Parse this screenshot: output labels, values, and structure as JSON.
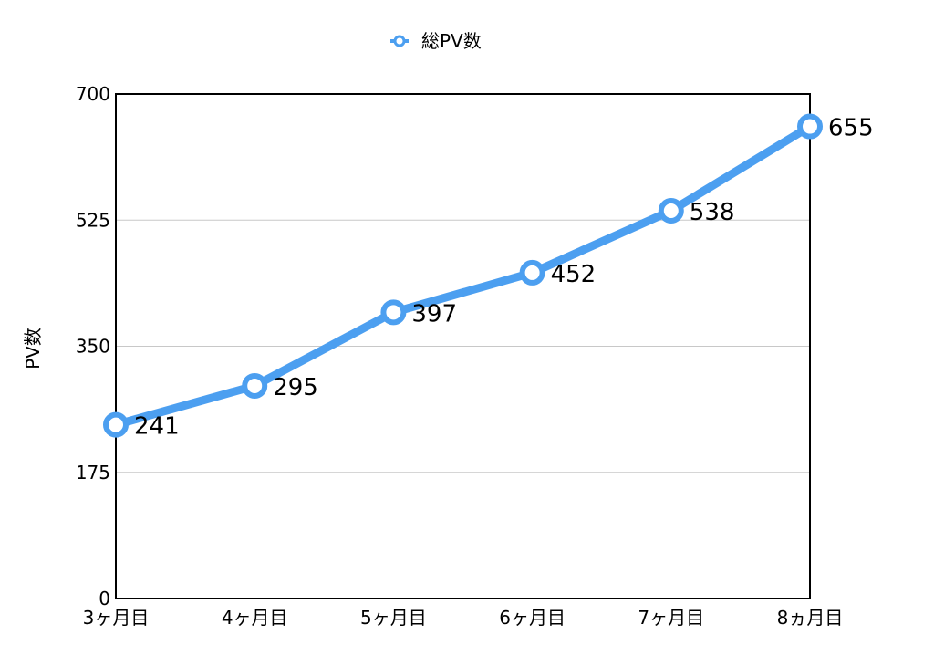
{
  "chart_data": {
    "type": "line",
    "categories": [
      "3ヶ月目",
      "4ヶ月目",
      "5ヶ月目",
      "6ヶ月目",
      "7ヶ月目",
      "8ヵ月目"
    ],
    "series": [
      {
        "name": "総PV数",
        "values": [
          241,
          295,
          397,
          452,
          538,
          655
        ],
        "color": "#4c9ff0"
      }
    ],
    "ylabel": "PV数",
    "xlabel": "",
    "ylim": [
      0,
      700
    ],
    "yticks": [
      0,
      175,
      350,
      525,
      700
    ],
    "grid": true,
    "legend_position": "top-center",
    "data_labels": [
      "241",
      "295",
      "397",
      "452",
      "538",
      "655"
    ]
  }
}
